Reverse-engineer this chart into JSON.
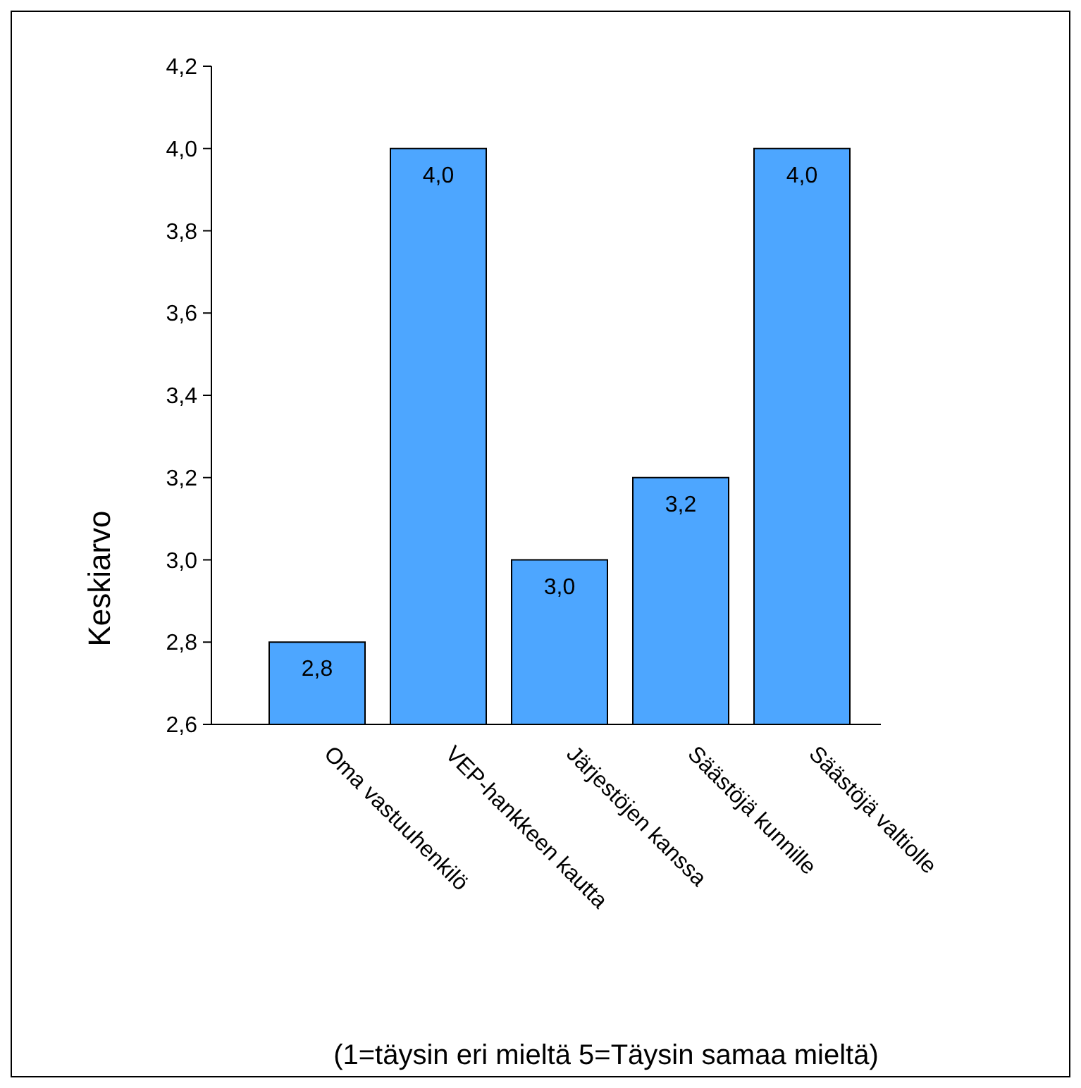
{
  "chart_data": {
    "type": "bar",
    "ylabel": "Keskiarvo",
    "categories": [
      "Oma vastuuhenkilö",
      "VEP-hankkeen kautta",
      "Järjestöjen kanssa",
      "Säästöjä kunnille",
      "Säästöjä valtiolle"
    ],
    "values": [
      2.8,
      4.0,
      3.0,
      3.2,
      4.0
    ],
    "color": "#4da6ff",
    "value_labels": [
      "2,8",
      "4,0",
      "3,0",
      "3,2",
      "4,0"
    ],
    "ylim": [
      2.6,
      4.2
    ],
    "yticks": [
      {
        "value": 2.6,
        "label": "2,6"
      },
      {
        "value": 2.8,
        "label": "2,8"
      },
      {
        "value": 3.0,
        "label": "3,0"
      },
      {
        "value": 3.2,
        "label": "3,2"
      },
      {
        "value": 3.4,
        "label": "3,4"
      },
      {
        "value": 3.6,
        "label": "3,6"
      },
      {
        "value": 3.8,
        "label": "3,8"
      },
      {
        "value": 4.0,
        "label": "4,0"
      },
      {
        "value": 4.2,
        "label": "4,2"
      }
    ],
    "grid": false,
    "annotations": [
      "(1=täysin eri mieltä 5=Täysin samaa mieltä)"
    ]
  }
}
